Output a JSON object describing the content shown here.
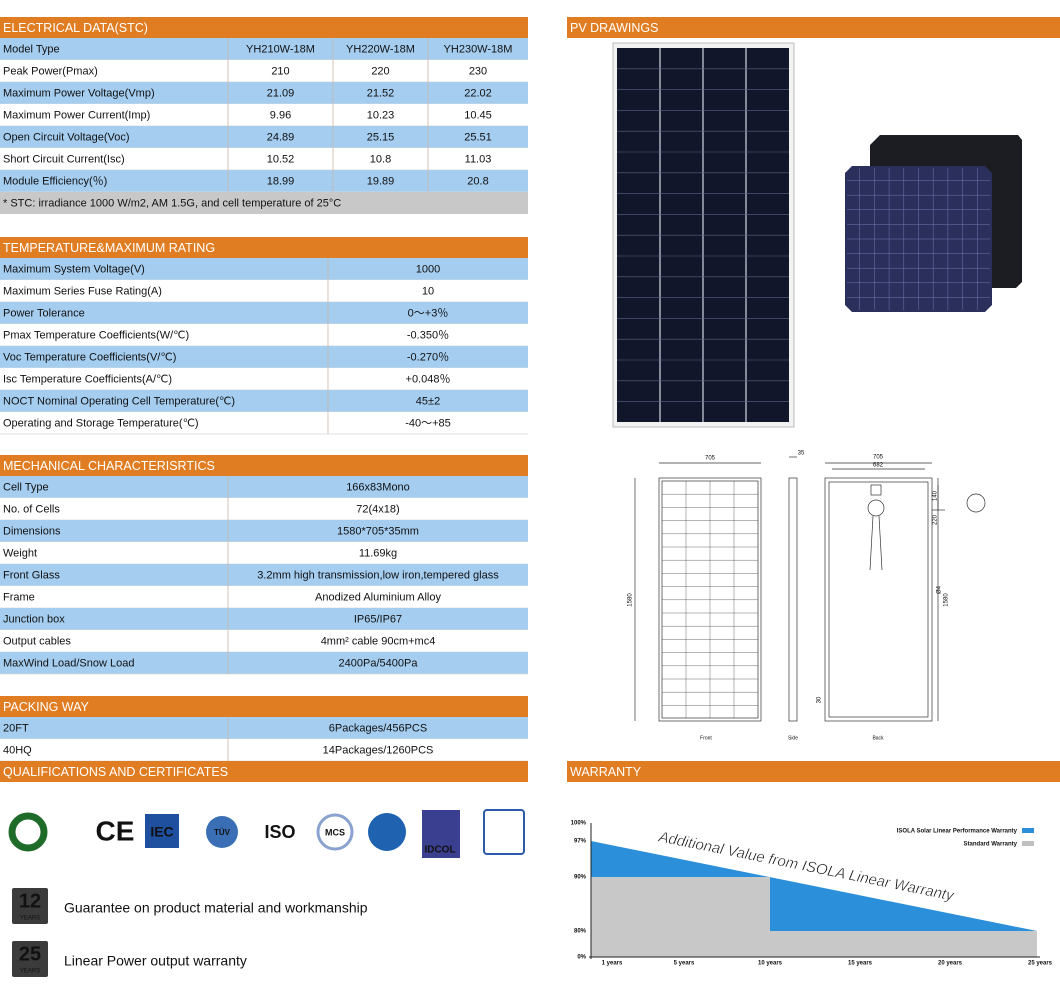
{
  "electrical": {
    "title": "ELECTRICAL DATA(STC)",
    "rows": [
      [
        "Model Type",
        "YH210W-18M",
        "YH220W-18M",
        "YH230W-18M"
      ],
      [
        "Peak Power(Pmax)",
        "210",
        "220",
        "230"
      ],
      [
        "Maximum Power Voltage(Vmp)",
        "21.09",
        "21.52",
        "22.02"
      ],
      [
        "Maximum Power Current(Imp)",
        "9.96",
        "10.23",
        "10.45"
      ],
      [
        "Open Circuit Voltage(Voc)",
        "24.89",
        "25.15",
        "25.51"
      ],
      [
        "Short Circuit Current(Isc)",
        "10.52",
        "10.8",
        "11.03"
      ],
      [
        "Module Efficiency(％)",
        "18.99",
        "19.89",
        "20.8"
      ]
    ],
    "note": "* STC:  irradiance 1000 W/m2, AM 1.5G, and cell temperature of 25°C"
  },
  "temperature": {
    "title": "TEMPERATURE&MAXIMUM  RATING",
    "rows": [
      [
        "Maximum System Voltage(V)",
        "1000"
      ],
      [
        "Maximum Series Fuse Rating(A)",
        "10"
      ],
      [
        "Power Tolerance",
        "0～+3％"
      ],
      [
        "Pmax Temperature Coefficients(W/℃)",
        "-0.350％"
      ],
      [
        "Voc Temperature Coefficients(V/℃)",
        "-0.270％"
      ],
      [
        "Isc Temperature Coefficients(A/℃)",
        "+0.048％"
      ],
      [
        "NOCT Nominal Operating Cell Temperature(℃)",
        "45±2"
      ],
      [
        "Operating and Storage Temperature(℃)",
        "-40～+85"
      ]
    ]
  },
  "mechanical": {
    "title": "MECHANICAL  CHARACTERISRTICS",
    "rows": [
      [
        "Cell Type",
        "166x83Mono"
      ],
      [
        "No. of Cells",
        "72(4x18)"
      ],
      [
        "Dimensions",
        "1580*705*35mm"
      ],
      [
        "Weight",
        "11.69kg"
      ],
      [
        "Front Glass",
        "3.2mm high transmission,low iron,tempered glass"
      ],
      [
        "Frame",
        "Anodized Aluminium Alloy"
      ],
      [
        "Junction box",
        "IP65/IP67"
      ],
      [
        "Output cables",
        "4mm² cable 90cm+mc4"
      ],
      [
        "MaxWind Load/Snow Load",
        "2400Pa/5400Pa"
      ]
    ]
  },
  "packing": {
    "title": "PACKING WAY",
    "rows": [
      [
        "20FT",
        "6Packages/456PCS"
      ],
      [
        "40HQ",
        "14Packages/1260PCS"
      ]
    ]
  },
  "qualifications": {
    "title": "QUALIFICATIONS  AND  CERTIFICATES",
    "logos": [
      "CE",
      "IEC",
      "TÜV",
      "ISO",
      "MCS",
      "IDCOL"
    ]
  },
  "guarantees": [
    {
      "years": "12",
      "unit": "YEARS",
      "text": "Guarantee  on product material and workmanship"
    },
    {
      "years": "25",
      "unit": "YEARS",
      "text": "Linear Power output warranty"
    }
  ],
  "pv_drawings": {
    "title": "PV DRAWINGS",
    "dimensions": {
      "front_width": "705",
      "side_depth": "35",
      "back_width": "705",
      "back_inner": "682",
      "jbox_h": "140",
      "jbox_gap": "220",
      "front_height": "1580",
      "back_height": "1580",
      "hole": "Ø4",
      "bottom": "30"
    },
    "views": [
      "Front",
      "Side",
      "Back"
    ]
  },
  "warranty": {
    "title": "WARRANTY",
    "y_labels": [
      "100%",
      "97%",
      "90%",
      "80%",
      "0%"
    ],
    "x_labels": [
      "1 years",
      "5 years",
      "10 years",
      "15 years",
      "20 years",
      "25 years"
    ],
    "legend": [
      "ISOLA Solar Linear Performance Warranty",
      "Standard Warranty"
    ],
    "annotation": "Additional Value from ISOLA Linear Warranty"
  }
}
